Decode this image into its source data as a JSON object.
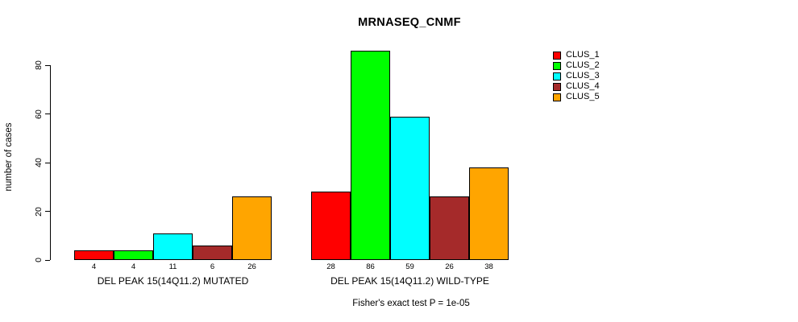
{
  "chart_data": {
    "type": "bar",
    "title": "MRNASEQ_CNMF",
    "ylabel": "number of cases",
    "xlabel": "",
    "ylim": [
      0,
      80
    ],
    "yticks": [
      0,
      20,
      40,
      60,
      80
    ],
    "grid": false,
    "legend_position": "right",
    "series_labels": [
      "CLUS_1",
      "CLUS_2",
      "CLUS_3",
      "CLUS_4",
      "CLUS_5"
    ],
    "colors": [
      "#FF0000",
      "#00FF00",
      "#00FFFF",
      "#A52A2A",
      "#FFA500"
    ],
    "groups": [
      {
        "label": "DEL PEAK 15(14Q11.2) MUTATED",
        "values": [
          4,
          4,
          11,
          6,
          26
        ]
      },
      {
        "label": "DEL PEAK 15(14Q11.2) WILD-TYPE",
        "values": [
          28,
          86,
          59,
          26,
          38
        ]
      }
    ],
    "annotation": "Fisher's exact test P = 1e-05"
  }
}
